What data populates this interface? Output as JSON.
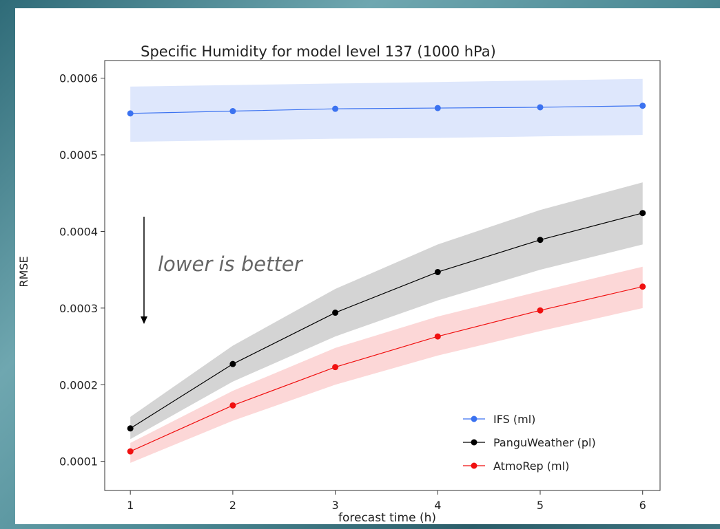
{
  "chart_data": {
    "type": "line",
    "title": "Specific Humidity for model level 137 (1000 hPa)",
    "xlabel": "forecast time (h)",
    "ylabel": "RMSE",
    "annotation": "lower is better",
    "x": [
      1,
      2,
      3,
      4,
      5,
      6
    ],
    "xlim": [
      0.75,
      6.17
    ],
    "xticks": [
      1,
      2,
      3,
      4,
      5,
      6
    ],
    "ylim": [
      6.2e-05,
      0.000623
    ],
    "yticks": [
      0.0001,
      0.0002,
      0.0003,
      0.0004,
      0.0005,
      0.0006
    ],
    "legend": "lower right",
    "series": [
      {
        "name": "IFS (ml)",
        "color": "#3b72f0",
        "values": [
          0.000554,
          0.000557,
          0.00056,
          0.000561,
          0.000562,
          0.000564
        ],
        "upper": [
          0.000589,
          0.000591,
          0.000593,
          0.000595,
          0.000597,
          0.000599
        ],
        "lower": [
          0.000517,
          0.000519,
          0.000521,
          0.000522,
          0.000524,
          0.000526
        ]
      },
      {
        "name": "PanguWeather (pl)",
        "color": "#000000",
        "values": [
          0.000143,
          0.000227,
          0.000294,
          0.000347,
          0.000389,
          0.000424
        ],
        "upper": [
          0.000158,
          0.000251,
          0.000325,
          0.000383,
          0.000428,
          0.000464
        ],
        "lower": [
          0.000129,
          0.000204,
          0.000263,
          0.00031,
          0.00035,
          0.000383
        ]
      },
      {
        "name": "AtmoRep (ml)",
        "color": "#f01010",
        "values": [
          0.000113,
          0.000173,
          0.000223,
          0.000263,
          0.000297,
          0.000328
        ],
        "upper": [
          0.000124,
          0.000192,
          0.000248,
          0.000289,
          0.000322,
          0.000354
        ],
        "lower": [
          9.8e-05,
          0.000153,
          0.0002,
          0.000238,
          0.00027,
          0.0003
        ]
      }
    ]
  }
}
